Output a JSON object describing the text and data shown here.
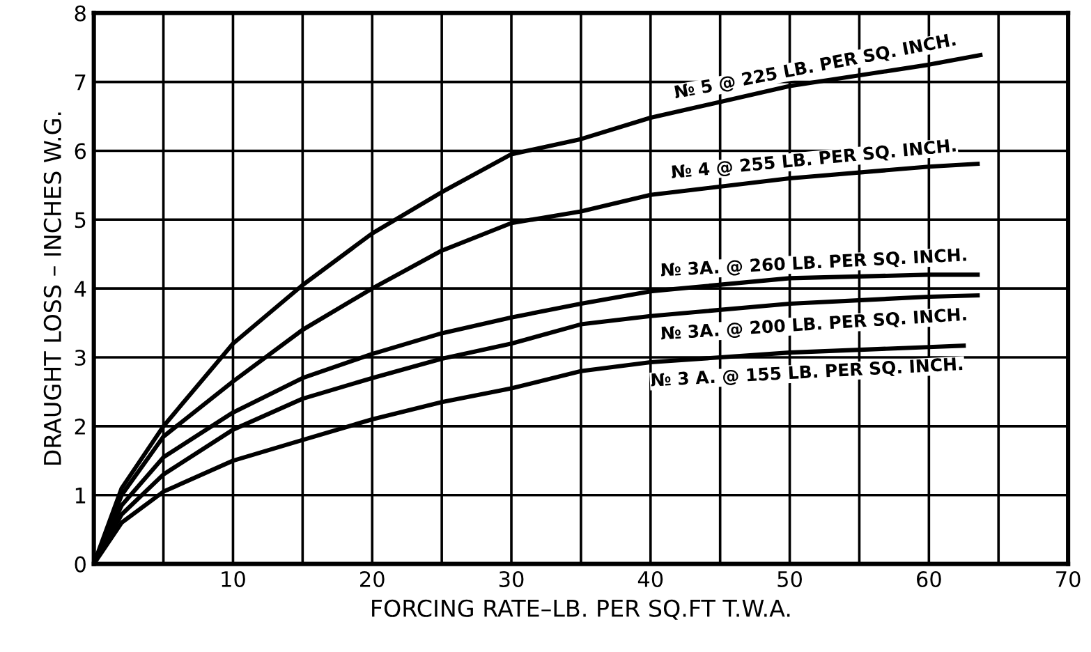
{
  "chart_data": {
    "type": "line",
    "xlabel": "FORCING RATE–LB. PER SQ.FT T.W.A.",
    "ylabel": "DRAUGHT LOSS – INCHES W.G.",
    "xlim": [
      0,
      70
    ],
    "ylim": [
      0,
      8
    ],
    "xticks": [
      {
        "value": 5,
        "label": null
      },
      10,
      {
        "value": 15,
        "label": null
      },
      20,
      {
        "value": 25,
        "label": null
      },
      30,
      {
        "value": 35,
        "label": null
      },
      40,
      {
        "value": 45,
        "label": null
      },
      50,
      {
        "value": 55,
        "label": null
      },
      60,
      {
        "value": 65,
        "label": null
      },
      70
    ],
    "yticks": [
      0,
      1,
      2,
      3,
      4,
      5,
      6,
      7,
      8
    ],
    "grid": true,
    "marker": "none",
    "line_style": "solid",
    "series": [
      {
        "name": "№ 5 @ 225 LB. PER SQ. INCH.",
        "color": "#000000",
        "x": [
          0,
          2,
          5,
          10,
          15,
          20,
          25,
          30,
          35,
          40,
          50,
          60,
          63.7
        ],
        "values": [
          0,
          1.1,
          2.0,
          3.2,
          4.05,
          4.8,
          5.4,
          5.95,
          6.17,
          6.48,
          6.94,
          7.25,
          7.39
        ]
      },
      {
        "name": "№ 4 @ 255 LB. PER SQ. INCH.",
        "color": "#000000",
        "x": [
          0,
          2,
          5,
          10,
          15,
          20,
          25,
          30,
          35,
          40,
          50,
          60,
          63.5
        ],
        "values": [
          0,
          1.0,
          1.85,
          2.65,
          3.4,
          4.0,
          4.55,
          4.95,
          5.12,
          5.36,
          5.6,
          5.77,
          5.81
        ]
      },
      {
        "name": "№ 3A. @ 260 LB. PER SQ. INCH.",
        "color": "#000000",
        "x": [
          0,
          2,
          5,
          10,
          15,
          20,
          25,
          30,
          35,
          40,
          50,
          60,
          63.5
        ],
        "values": [
          0,
          0.85,
          1.55,
          2.2,
          2.7,
          3.05,
          3.35,
          3.58,
          3.78,
          3.96,
          4.15,
          4.2,
          4.2
        ]
      },
      {
        "name": "№ 3A. @ 200 LB. PER SQ. INCH.",
        "color": "#000000",
        "x": [
          0,
          2,
          5,
          10,
          15,
          20,
          25,
          30,
          35,
          40,
          50,
          60,
          63.5
        ],
        "values": [
          0,
          0.72,
          1.3,
          1.95,
          2.4,
          2.7,
          2.98,
          3.2,
          3.48,
          3.6,
          3.78,
          3.88,
          3.9
        ]
      },
      {
        "name": "№ 3 A. @ 155 LB. PER SQ. INCH.",
        "color": "#000000",
        "x": [
          0,
          2,
          5,
          10,
          15,
          20,
          25,
          30,
          35,
          40,
          50,
          60,
          62.5
        ],
        "values": [
          0,
          0.6,
          1.05,
          1.5,
          1.8,
          2.1,
          2.35,
          2.55,
          2.8,
          2.93,
          3.07,
          3.15,
          3.17
        ]
      }
    ]
  }
}
